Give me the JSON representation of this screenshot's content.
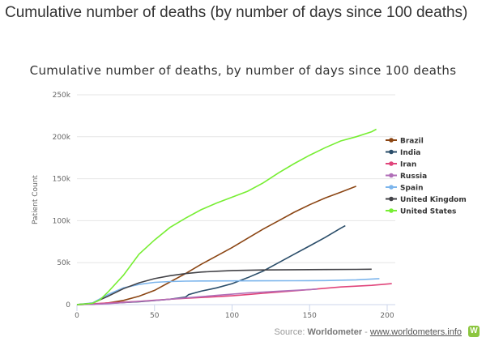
{
  "heading": "Cumulative number of deaths (by number of days since 100 deaths)",
  "source": {
    "label": "Source:",
    "name": "Worldometer",
    "sep": "-",
    "link": "www.worldometers.info",
    "logo": "W"
  },
  "chart_data": {
    "type": "line",
    "title": "Cumulative number of deaths, by number of days since 100 deaths",
    "xlabel": "",
    "ylabel": "Patient Count",
    "xlim": [
      0,
      200
    ],
    "ylim": [
      0,
      250000
    ],
    "xticks": [
      0,
      50,
      100,
      150,
      200
    ],
    "yticks": [
      {
        "v": 0,
        "l": "0"
      },
      {
        "v": 50000,
        "l": "50k"
      },
      {
        "v": 100000,
        "l": "100k"
      },
      {
        "v": 150000,
        "l": "150k"
      },
      {
        "v": 200000,
        "l": "200k"
      },
      {
        "v": 250000,
        "l": "250k"
      }
    ],
    "legend": "right",
    "series": [
      {
        "name": "Brazil",
        "color": "#8b4513",
        "x": [
          0,
          10,
          20,
          30,
          40,
          50,
          60,
          70,
          80,
          90,
          100,
          110,
          120,
          130,
          140,
          150,
          160,
          170,
          180
        ],
        "y": [
          100,
          500,
          2000,
          5000,
          10000,
          17000,
          27000,
          37000,
          48000,
          58000,
          68000,
          79000,
          90000,
          100000,
          110000,
          119000,
          127000,
          134000,
          141000
        ]
      },
      {
        "name": "India",
        "color": "#2a4d69",
        "x": [
          0,
          10,
          20,
          30,
          40,
          50,
          60,
          70,
          72,
          80,
          90,
          100,
          110,
          120,
          130,
          140,
          150,
          160,
          170,
          173
        ],
        "y": [
          100,
          600,
          1500,
          2500,
          3500,
          4800,
          6500,
          9000,
          12000,
          16000,
          20000,
          25000,
          32000,
          40000,
          50000,
          60000,
          70000,
          80000,
          91000,
          94000
        ]
      },
      {
        "name": "Iran",
        "color": "#e0457b",
        "x": [
          0,
          10,
          20,
          30,
          40,
          50,
          60,
          70,
          80,
          90,
          100,
          110,
          120,
          130,
          140,
          150,
          160,
          170,
          180,
          190,
          200,
          203
        ],
        "y": [
          100,
          1000,
          2000,
          3000,
          4000,
          5200,
          6500,
          7500,
          8500,
          9500,
          10500,
          12000,
          13500,
          15000,
          16500,
          18000,
          19500,
          21000,
          22000,
          23000,
          24500,
          25000
        ]
      },
      {
        "name": "Russia",
        "color": "#b06fb8",
        "x": [
          0,
          10,
          20,
          30,
          40,
          50,
          60,
          70,
          80,
          90,
          100,
          110,
          120,
          130,
          140,
          150,
          155
        ],
        "y": [
          100,
          400,
          1200,
          2500,
          3800,
          5000,
          6500,
          8000,
          9500,
          11000,
          12500,
          14000,
          15000,
          16000,
          17000,
          18000,
          18500
        ]
      },
      {
        "name": "Spain",
        "color": "#7cb5ec",
        "x": [
          0,
          10,
          20,
          30,
          40,
          50,
          60,
          70,
          80,
          100,
          120,
          140,
          160,
          180,
          195
        ],
        "y": [
          100,
          2000,
          12000,
          20000,
          24000,
          26500,
          27500,
          28000,
          28200,
          28300,
          28400,
          28500,
          28700,
          29500,
          31000
        ]
      },
      {
        "name": "United Kingdom",
        "color": "#434348",
        "x": [
          0,
          10,
          20,
          30,
          40,
          50,
          60,
          70,
          80,
          90,
          100,
          120,
          140,
          160,
          180,
          190
        ],
        "y": [
          100,
          1500,
          10000,
          19000,
          26000,
          31000,
          34500,
          37000,
          38800,
          39800,
          40600,
          41300,
          41600,
          41800,
          42000,
          42200
        ]
      },
      {
        "name": "United States",
        "color": "#77ee33",
        "x": [
          0,
          10,
          15,
          20,
          30,
          40,
          50,
          60,
          70,
          80,
          90,
          100,
          110,
          120,
          130,
          140,
          150,
          160,
          170,
          180,
          190,
          193
        ],
        "y": [
          100,
          1500,
          6000,
          15000,
          35000,
          60000,
          77000,
          92000,
          103000,
          113000,
          121000,
          128000,
          135000,
          145000,
          157000,
          168000,
          178000,
          187000,
          195000,
          200000,
          206000,
          209000
        ]
      }
    ]
  }
}
